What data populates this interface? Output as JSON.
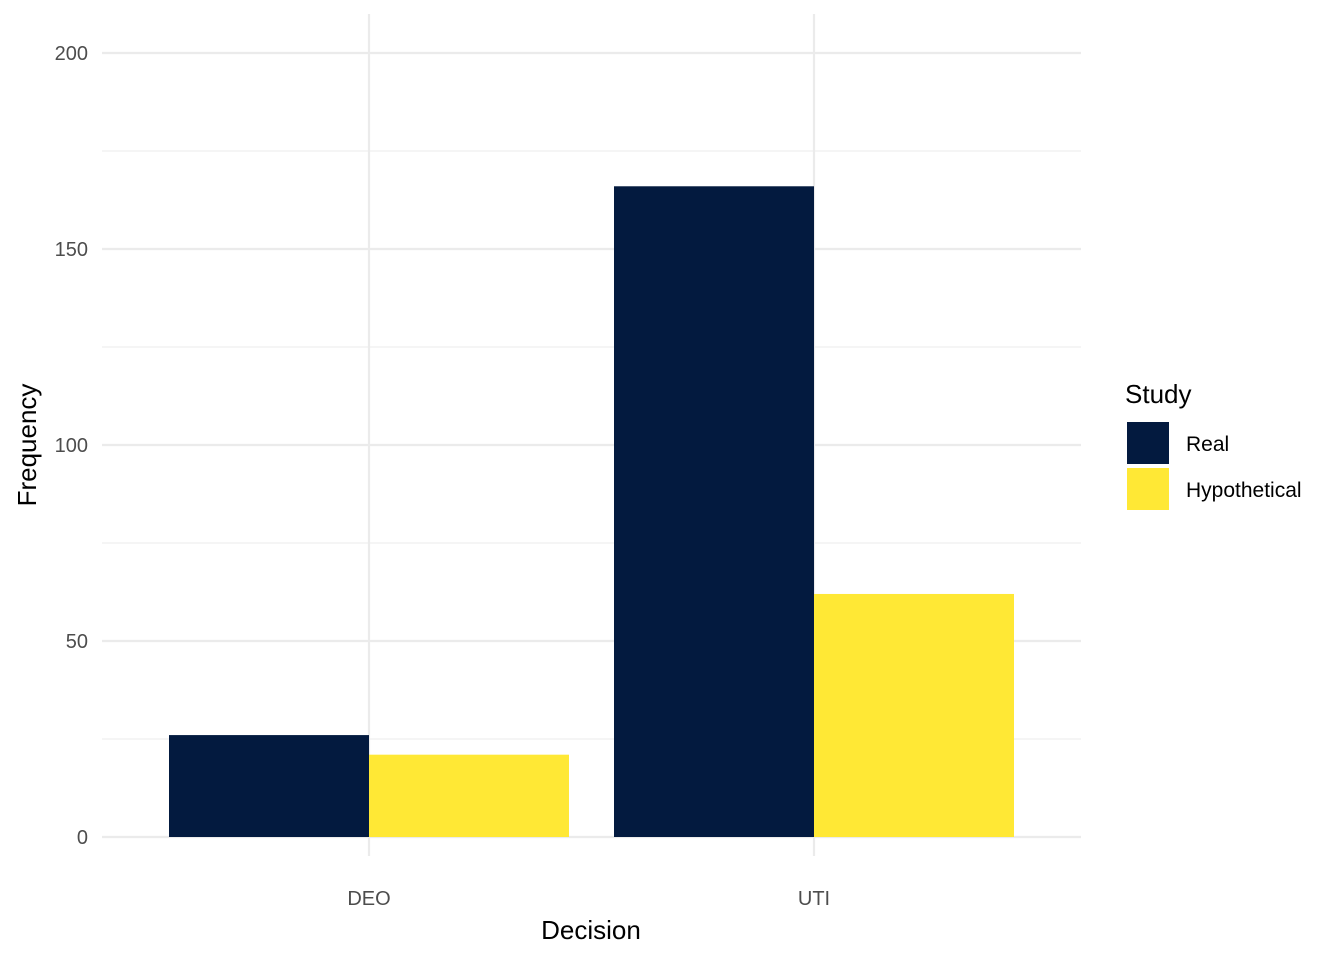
{
  "chart_data": {
    "type": "bar",
    "categories": [
      "DEO",
      "UTI"
    ],
    "series": [
      {
        "name": "Real",
        "values": [
          26,
          166
        ],
        "color": "#031a3f"
      },
      {
        "name": "Hypothetical",
        "values": [
          21,
          62
        ],
        "color": "#ffe835"
      }
    ],
    "xlabel": "Decision",
    "ylabel": "Frequency",
    "ylim": [
      0,
      200
    ],
    "yticks": [
      0,
      50,
      100,
      150,
      200
    ],
    "yticklabels": [
      "0",
      "50",
      "100",
      "150",
      "200"
    ],
    "grid": true,
    "legend": {
      "title": "Study",
      "position": "right"
    }
  }
}
